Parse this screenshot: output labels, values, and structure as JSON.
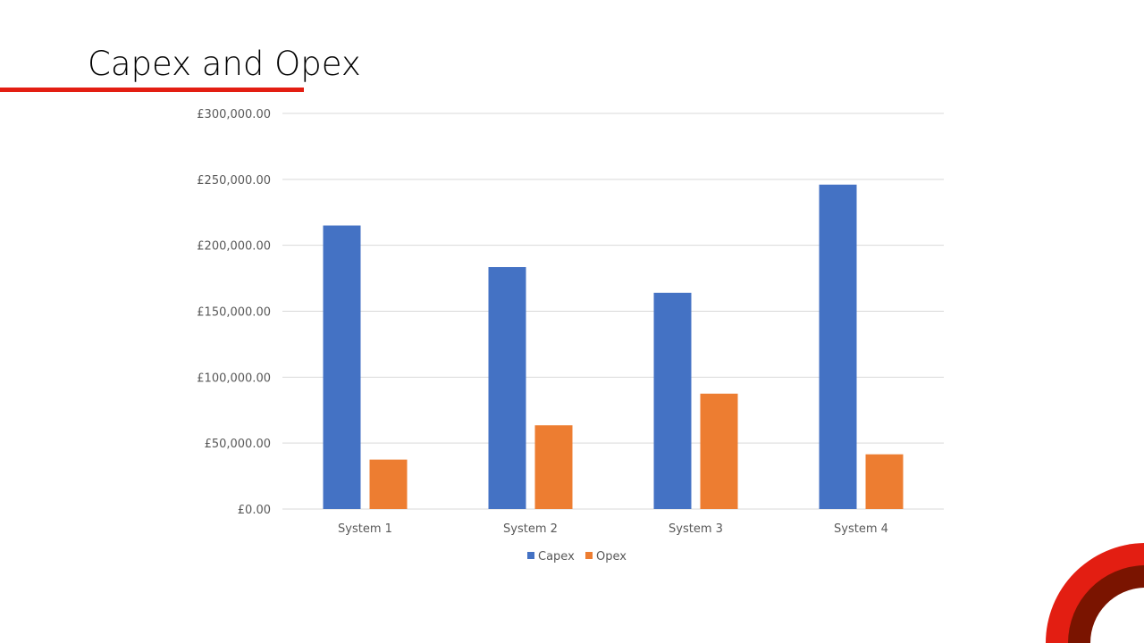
{
  "slide": {
    "title": "Capex and Opex",
    "accent_color": "#e31e12",
    "logo_colors": [
      "#e31e12",
      "#7a1400"
    ]
  },
  "chart_data": {
    "type": "bar",
    "title": "",
    "xlabel": "",
    "ylabel": "",
    "categories": [
      "System 1",
      "System 2",
      "System 3",
      "System 4"
    ],
    "series": [
      {
        "name": "Capex",
        "color": "#4472c4",
        "values": [
          215000,
          183500,
          164000,
          246000
        ]
      },
      {
        "name": "Opex",
        "color": "#ed7d31",
        "values": [
          37500,
          63500,
          87500,
          41500
        ]
      }
    ],
    "ylim": [
      0,
      300000
    ],
    "yticks": [
      "£0.00",
      "£50,000.00",
      "£100,000.00",
      "£150,000.00",
      "£200,000.00",
      "£250,000.00",
      "£300,000.00"
    ],
    "ytick_values": [
      0,
      50000,
      100000,
      150000,
      200000,
      250000,
      300000
    ],
    "grid": true,
    "legend": "bottom"
  }
}
